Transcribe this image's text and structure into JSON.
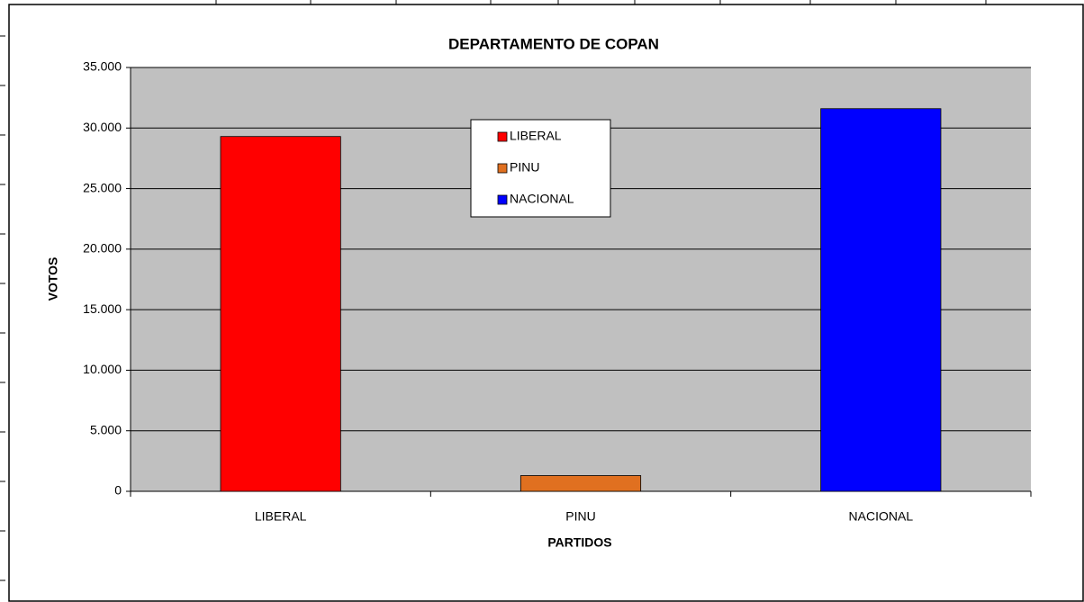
{
  "chart_data": {
    "type": "bar",
    "title": "DEPARTAMENTO DE COPAN",
    "x_label": "PARTIDOS",
    "y_label": "VOTOS",
    "categories": [
      "LIBERAL",
      "PINU",
      "NACIONAL"
    ],
    "values": [
      29300,
      1300,
      31600
    ],
    "colors": [
      "#ff0000",
      "#e07020",
      "#0000ff"
    ],
    "ylim": [
      0,
      35000
    ],
    "yticks": [
      0,
      {
        "value": 5000,
        "label": "5.000"
      },
      {
        "value": 10000,
        "label": "10.000"
      },
      {
        "value": 15000,
        "label": "15.000"
      },
      {
        "value": 20000,
        "label": "20.000"
      },
      {
        "value": 25000,
        "label": "25.000"
      },
      {
        "value": 30000,
        "label": "30.000"
      },
      {
        "value": 35000,
        "label": "35.000"
      }
    ],
    "grid": true,
    "legend": true,
    "plot_background": "#c0c0c0"
  }
}
